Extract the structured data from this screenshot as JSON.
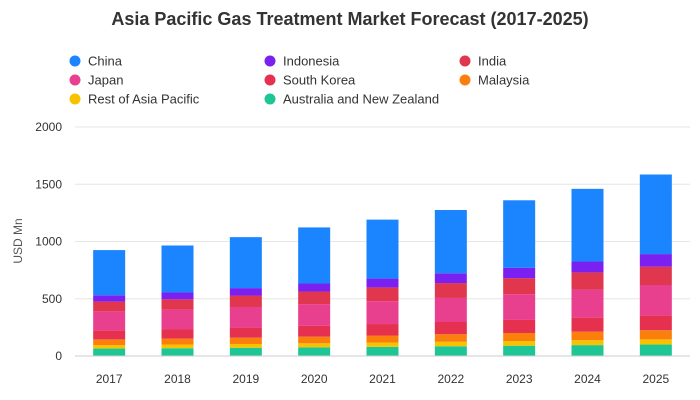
{
  "chart_data": {
    "type": "bar",
    "stacked": true,
    "title": "Asia Pacific Gas Treatment Market Forecast (2017-2025)",
    "xlabel": "",
    "ylabel": "USD Mn",
    "ylim": [
      0,
      2000
    ],
    "yticks": [
      0,
      500,
      1000,
      1500,
      2000
    ],
    "grid": true,
    "legend_position": "top",
    "categories": [
      "2017",
      "2018",
      "2019",
      "2020",
      "2021",
      "2022",
      "2023",
      "2024",
      "2025"
    ],
    "series": [
      {
        "name": "Australia and New Zealand",
        "color": "#1ec695",
        "values": [
          65,
          68,
          72,
          76,
          80,
          85,
          90,
          95,
          100
        ]
      },
      {
        "name": "Rest of Asia Pacific",
        "color": "#f8c200",
        "values": [
          30,
          32,
          33,
          35,
          37,
          39,
          41,
          43,
          45
        ]
      },
      {
        "name": "Malaysia",
        "color": "#fb7f0c",
        "values": [
          50,
          52,
          55,
          58,
          62,
          66,
          70,
          75,
          80
        ]
      },
      {
        "name": "South Korea",
        "color": "#e5304f",
        "values": [
          80,
          83,
          88,
          94,
          100,
          107,
          114,
          122,
          130
        ]
      },
      {
        "name": "Japan",
        "color": "#e83f8f",
        "values": [
          165,
          170,
          180,
          190,
          200,
          210,
          225,
          245,
          265
        ]
      },
      {
        "name": "India",
        "color": "#e0374e",
        "values": [
          85,
          90,
          100,
          110,
          120,
          130,
          140,
          150,
          160
        ]
      },
      {
        "name": "Indonesia",
        "color": "#7a20f0",
        "values": [
          55,
          60,
          65,
          70,
          77,
          85,
          90,
          95,
          110
        ]
      },
      {
        "name": "China",
        "color": "#1a85ff",
        "values": [
          395,
          410,
          445,
          490,
          515,
          553,
          590,
          635,
          695
        ]
      }
    ],
    "legend_order": [
      "China",
      "Indonesia",
      "India",
      "Japan",
      "South Korea",
      "Malaysia",
      "Rest of Asia Pacific",
      "Australia and New Zealand"
    ]
  }
}
